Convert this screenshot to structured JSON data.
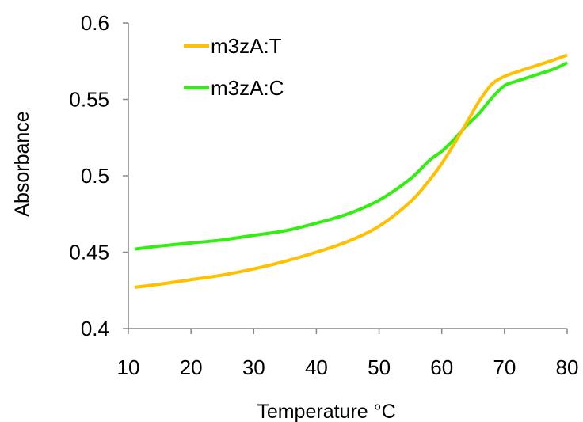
{
  "chart_data": {
    "type": "line",
    "title": "",
    "xlabel": "Temperature °C",
    "ylabel": "Absorbance",
    "xlim": [
      10,
      80
    ],
    "ylim": [
      0.4,
      0.6
    ],
    "x_ticks": [
      "10",
      "20",
      "30",
      "40",
      "50",
      "60",
      "70",
      "80"
    ],
    "y_ticks": [
      "0.4",
      "0.45",
      "0.5",
      "0.55",
      "0.6"
    ],
    "grid": false,
    "legend_position": "top-left",
    "series": [
      {
        "name": "m3zA:T",
        "color": "#FFC000",
        "x": [
          11,
          15,
          20,
          25,
          30,
          35,
          40,
          45,
          50,
          55,
          58,
          60,
          62,
          64,
          66,
          68,
          70,
          72,
          75,
          78,
          80
        ],
        "y": [
          0.427,
          0.429,
          0.432,
          0.435,
          0.439,
          0.444,
          0.45,
          0.457,
          0.467,
          0.483,
          0.497,
          0.508,
          0.521,
          0.535,
          0.549,
          0.56,
          0.565,
          0.568,
          0.572,
          0.576,
          0.579
        ]
      },
      {
        "name": "m3zA:C",
        "color": "#33EE11",
        "x": [
          11,
          15,
          20,
          25,
          30,
          35,
          40,
          45,
          50,
          55,
          58,
          60,
          62,
          64,
          66,
          68,
          70,
          72,
          75,
          78,
          80
        ],
        "y": [
          0.452,
          0.454,
          0.456,
          0.458,
          0.461,
          0.464,
          0.469,
          0.475,
          0.484,
          0.498,
          0.51,
          0.516,
          0.524,
          0.533,
          0.541,
          0.551,
          0.559,
          0.562,
          0.566,
          0.57,
          0.574
        ]
      }
    ]
  }
}
